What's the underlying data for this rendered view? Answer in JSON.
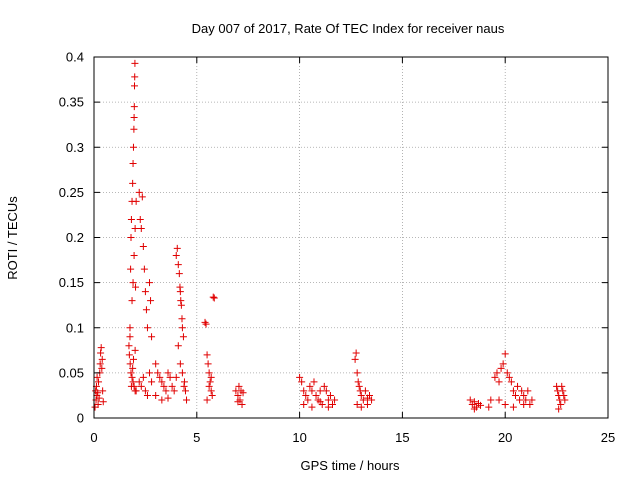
{
  "chart_data": {
    "type": "scatter",
    "title": "Day 007 of 2017, Rate Of TEC Index for receiver naus",
    "xlabel": "GPS time / hours",
    "ylabel": "ROTI / TECUs",
    "xlim": [
      0,
      25
    ],
    "ylim": [
      0,
      0.4
    ],
    "xticks": [
      0,
      5,
      10,
      15,
      20,
      25
    ],
    "yticks": [
      0,
      0.05,
      0.1,
      0.15,
      0.2,
      0.25,
      0.3,
      0.35,
      0.4
    ],
    "xtick_labels": [
      "0",
      "5",
      "10",
      "15",
      "20",
      "25"
    ],
    "ytick_labels": [
      "0",
      "0.05",
      "0.1",
      "0.15",
      "0.2",
      "0.25",
      "0.3",
      "0.35",
      "0.4"
    ],
    "grid": true,
    "marker": "+",
    "colors": {
      "points": "#e00000",
      "grid": "#a0a0a0",
      "axis": "#000000"
    },
    "series": [
      {
        "name": "ROTI",
        "points": [
          [
            0.05,
            0.012
          ],
          [
            0.1,
            0.02
          ],
          [
            0.12,
            0.035
          ],
          [
            0.15,
            0.045
          ],
          [
            0.18,
            0.028
          ],
          [
            0.2,
            0.015
          ],
          [
            0.22,
            0.04
          ],
          [
            0.25,
            0.022
          ],
          [
            0.28,
            0.05
          ],
          [
            0.3,
            0.06
          ],
          [
            0.32,
            0.072
          ],
          [
            0.35,
            0.078
          ],
          [
            0.38,
            0.055
          ],
          [
            0.4,
            0.065
          ],
          [
            0.42,
            0.03
          ],
          [
            0.45,
            0.018
          ],
          [
            0.08,
            0.03
          ],
          [
            0.14,
            0.025
          ],
          [
            1.7,
            0.08
          ],
          [
            1.72,
            0.07
          ],
          [
            1.75,
            0.1
          ],
          [
            1.78,
            0.165
          ],
          [
            1.8,
            0.2
          ],
          [
            1.82,
            0.22
          ],
          [
            1.85,
            0.24
          ],
          [
            1.88,
            0.26
          ],
          [
            1.9,
            0.282
          ],
          [
            1.92,
            0.3
          ],
          [
            1.94,
            0.32
          ],
          [
            1.95,
            0.333
          ],
          [
            1.96,
            0.345
          ],
          [
            1.97,
            0.368
          ],
          [
            1.98,
            0.378
          ],
          [
            1.99,
            0.393
          ],
          [
            1.76,
            0.06
          ],
          [
            1.8,
            0.05
          ],
          [
            1.85,
            0.045
          ],
          [
            1.9,
            0.04
          ],
          [
            1.95,
            0.035
          ],
          [
            2.0,
            0.03
          ],
          [
            2.05,
            0.03
          ],
          [
            1.75,
            0.09
          ],
          [
            1.85,
            0.13
          ],
          [
            1.9,
            0.15
          ],
          [
            1.95,
            0.18
          ],
          [
            2.0,
            0.21
          ],
          [
            2.05,
            0.24
          ],
          [
            1.88,
            0.055
          ],
          [
            1.92,
            0.065
          ],
          [
            2.0,
            0.075
          ],
          [
            1.82,
            0.035
          ],
          [
            2.02,
            0.145
          ],
          [
            2.2,
            0.25
          ],
          [
            2.25,
            0.22
          ],
          [
            2.3,
            0.21
          ],
          [
            2.35,
            0.245
          ],
          [
            2.4,
            0.19
          ],
          [
            2.45,
            0.165
          ],
          [
            2.5,
            0.14
          ],
          [
            2.55,
            0.12
          ],
          [
            2.6,
            0.1
          ],
          [
            2.7,
            0.15
          ],
          [
            2.75,
            0.13
          ],
          [
            2.8,
            0.09
          ],
          [
            2.2,
            0.04
          ],
          [
            2.3,
            0.035
          ],
          [
            2.4,
            0.045
          ],
          [
            2.5,
            0.03
          ],
          [
            2.6,
            0.025
          ],
          [
            2.7,
            0.05
          ],
          [
            2.8,
            0.04
          ],
          [
            3.0,
            0.06
          ],
          [
            3.1,
            0.05
          ],
          [
            3.2,
            0.045
          ],
          [
            3.3,
            0.04
          ],
          [
            3.4,
            0.035
          ],
          [
            3.5,
            0.03
          ],
          [
            3.6,
            0.05
          ],
          [
            3.7,
            0.045
          ],
          [
            3.8,
            0.035
          ],
          [
            3.9,
            0.03
          ],
          [
            3.0,
            0.025
          ],
          [
            3.3,
            0.02
          ],
          [
            3.6,
            0.022
          ],
          [
            4.0,
            0.18
          ],
          [
            4.05,
            0.188
          ],
          [
            4.1,
            0.17
          ],
          [
            4.15,
            0.16
          ],
          [
            4.18,
            0.145
          ],
          [
            4.2,
            0.14
          ],
          [
            4.22,
            0.13
          ],
          [
            4.25,
            0.125
          ],
          [
            4.28,
            0.11
          ],
          [
            4.3,
            0.1
          ],
          [
            4.35,
            0.09
          ],
          [
            4.1,
            0.08
          ],
          [
            4.2,
            0.06
          ],
          [
            4.3,
            0.05
          ],
          [
            4.4,
            0.04
          ],
          [
            4.0,
            0.045
          ],
          [
            4.45,
            0.03
          ],
          [
            4.5,
            0.02
          ],
          [
            4.38,
            0.035
          ],
          [
            5.4,
            0.106
          ],
          [
            5.45,
            0.104
          ],
          [
            5.5,
            0.07
          ],
          [
            5.55,
            0.06
          ],
          [
            5.6,
            0.05
          ],
          [
            5.65,
            0.04
          ],
          [
            5.7,
            0.03
          ],
          [
            5.75,
            0.025
          ],
          [
            5.8,
            0.134
          ],
          [
            5.85,
            0.133
          ],
          [
            5.5,
            0.02
          ],
          [
            5.6,
            0.035
          ],
          [
            5.7,
            0.045
          ],
          [
            6.9,
            0.03
          ],
          [
            7.0,
            0.025
          ],
          [
            7.05,
            0.035
          ],
          [
            7.1,
            0.02
          ],
          [
            7.15,
            0.03
          ],
          [
            7.2,
            0.015
          ],
          [
            7.25,
            0.028
          ],
          [
            7.0,
            0.018
          ],
          [
            10.0,
            0.045
          ],
          [
            10.1,
            0.04
          ],
          [
            10.2,
            0.03
          ],
          [
            10.3,
            0.025
          ],
          [
            10.4,
            0.02
          ],
          [
            10.5,
            0.035
          ],
          [
            10.6,
            0.03
          ],
          [
            10.7,
            0.04
          ],
          [
            10.8,
            0.025
          ],
          [
            10.9,
            0.02
          ],
          [
            11.0,
            0.03
          ],
          [
            11.1,
            0.015
          ],
          [
            11.2,
            0.035
          ],
          [
            11.3,
            0.03
          ],
          [
            11.4,
            0.02
          ],
          [
            11.5,
            0.025
          ],
          [
            11.6,
            0.015
          ],
          [
            11.7,
            0.02
          ],
          [
            10.2,
            0.015
          ],
          [
            10.6,
            0.012
          ],
          [
            11.0,
            0.018
          ],
          [
            11.4,
            0.012
          ],
          [
            12.7,
            0.065
          ],
          [
            12.75,
            0.072
          ],
          [
            12.8,
            0.05
          ],
          [
            12.85,
            0.04
          ],
          [
            12.9,
            0.035
          ],
          [
            12.95,
            0.03
          ],
          [
            13.0,
            0.025
          ],
          [
            13.1,
            0.02
          ],
          [
            13.2,
            0.03
          ],
          [
            13.3,
            0.015
          ],
          [
            13.4,
            0.025
          ],
          [
            13.5,
            0.02
          ],
          [
            12.8,
            0.015
          ],
          [
            13.0,
            0.012
          ],
          [
            13.3,
            0.022
          ],
          [
            18.3,
            0.02
          ],
          [
            18.4,
            0.015
          ],
          [
            18.5,
            0.018
          ],
          [
            18.6,
            0.012
          ],
          [
            18.7,
            0.016
          ],
          [
            18.8,
            0.014
          ],
          [
            19.2,
            0.012
          ],
          [
            19.3,
            0.02
          ],
          [
            18.5,
            0.01
          ],
          [
            19.5,
            0.045
          ],
          [
            19.6,
            0.05
          ],
          [
            19.7,
            0.04
          ],
          [
            19.8,
            0.055
          ],
          [
            19.9,
            0.06
          ],
          [
            20.0,
            0.071
          ],
          [
            20.1,
            0.05
          ],
          [
            20.2,
            0.045
          ],
          [
            20.3,
            0.04
          ],
          [
            20.4,
            0.03
          ],
          [
            20.5,
            0.025
          ],
          [
            20.6,
            0.035
          ],
          [
            20.7,
            0.02
          ],
          [
            20.8,
            0.03
          ],
          [
            20.9,
            0.025
          ],
          [
            21.0,
            0.02
          ],
          [
            21.1,
            0.03
          ],
          [
            21.2,
            0.015
          ],
          [
            21.3,
            0.02
          ],
          [
            19.7,
            0.02
          ],
          [
            20.0,
            0.015
          ],
          [
            20.4,
            0.012
          ],
          [
            20.9,
            0.015
          ],
          [
            22.5,
            0.035
          ],
          [
            22.55,
            0.03
          ],
          [
            22.6,
            0.025
          ],
          [
            22.65,
            0.02
          ],
          [
            22.7,
            0.015
          ],
          [
            22.75,
            0.035
          ],
          [
            22.8,
            0.03
          ],
          [
            22.85,
            0.025
          ],
          [
            22.9,
            0.02
          ],
          [
            22.6,
            0.01
          ]
        ]
      }
    ]
  }
}
